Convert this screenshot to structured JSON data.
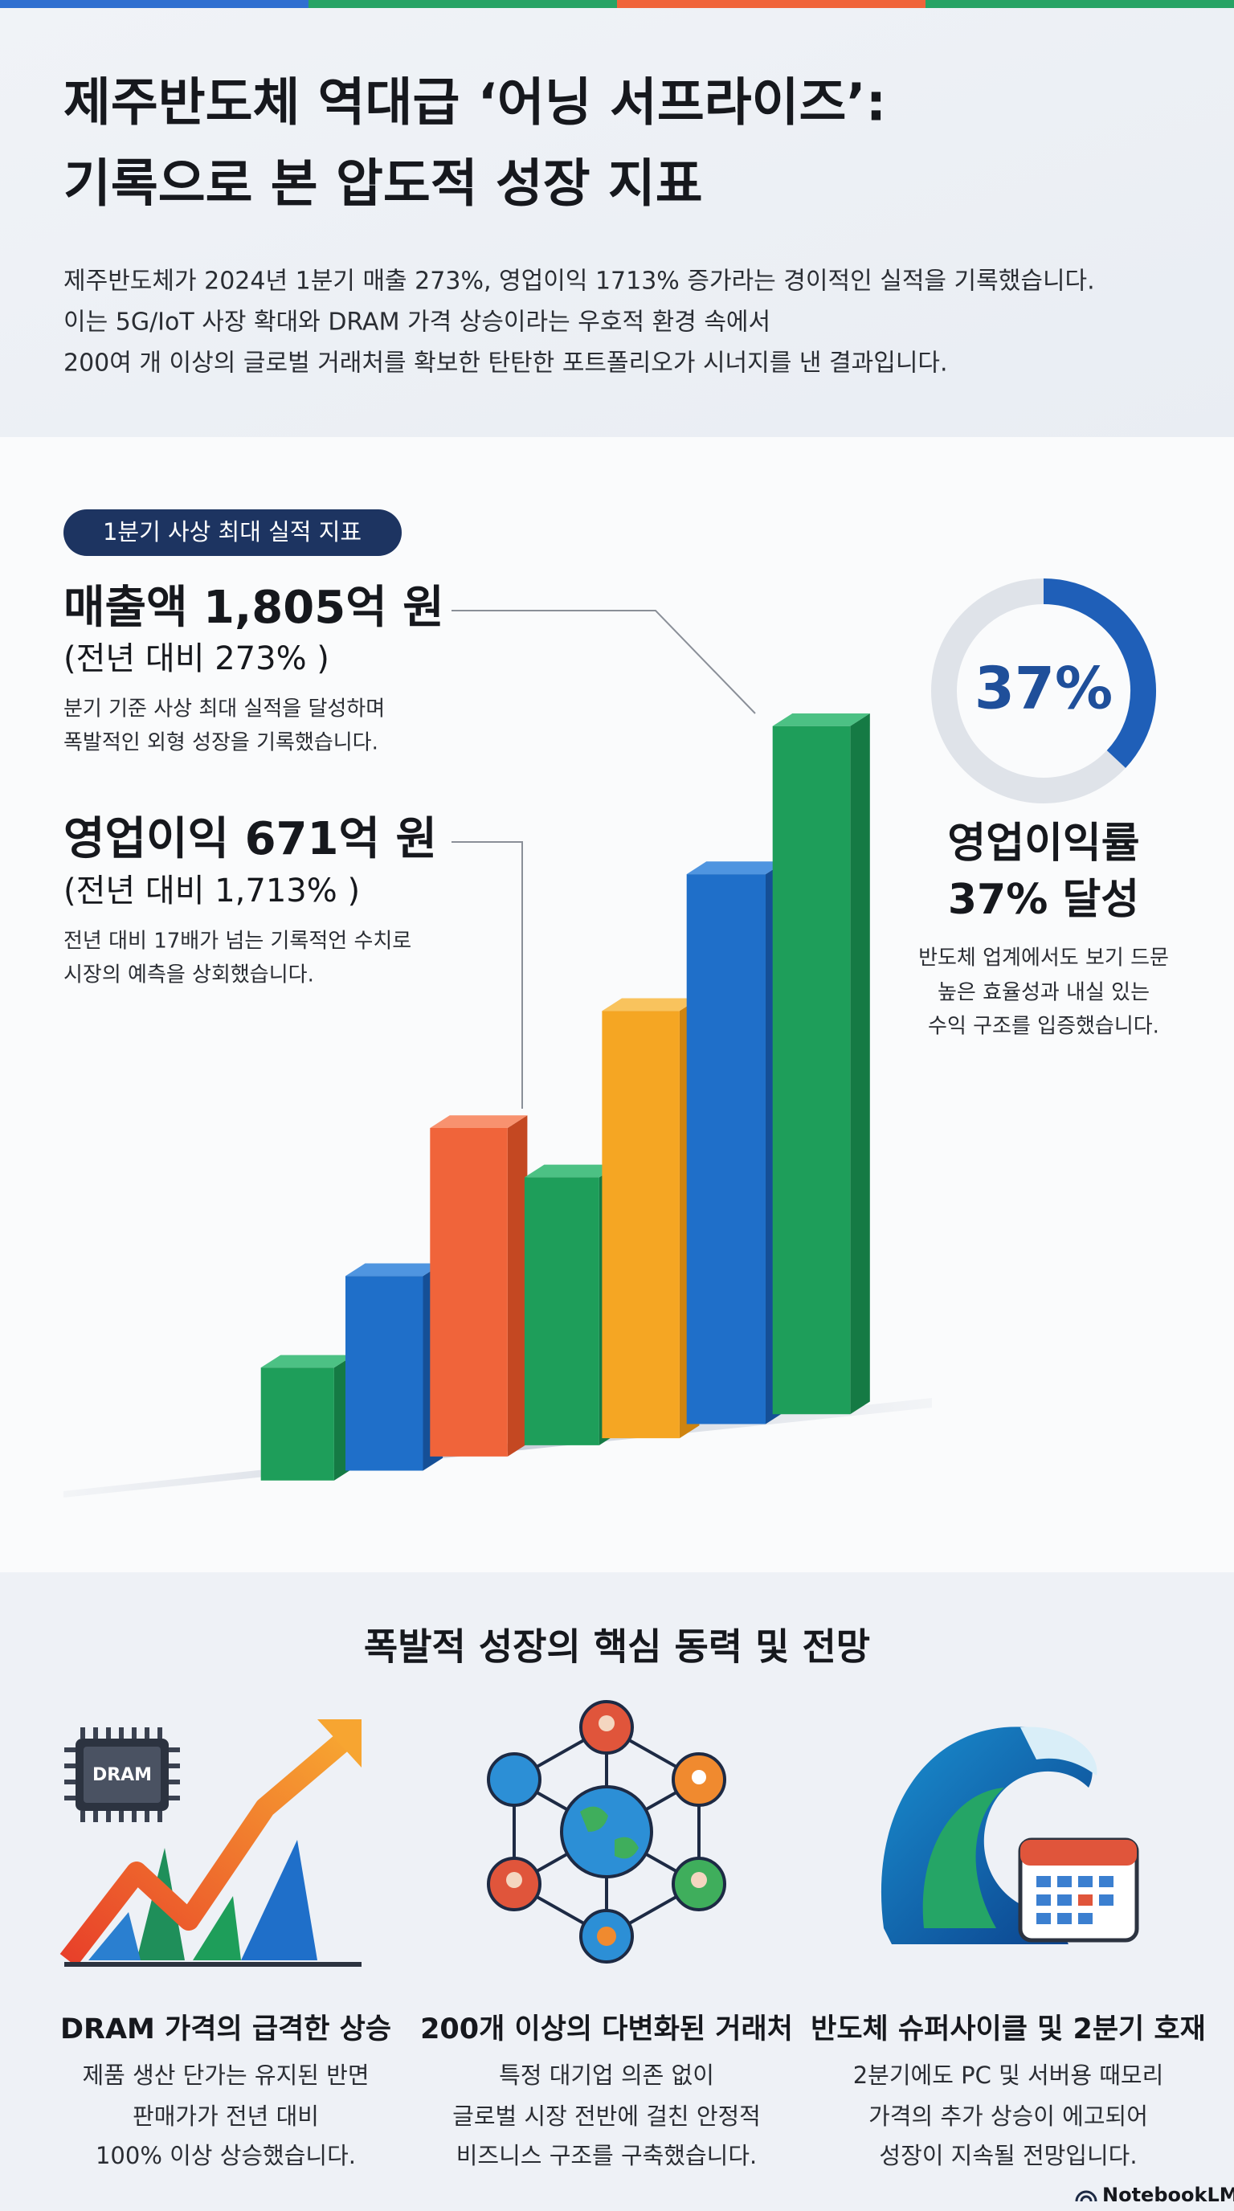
{
  "header": {
    "title": [
      "제주반도체 역대급 ‘어닝 서프라이즈’:",
      "기록으로 본 압도적 성장 지표"
    ],
    "description": [
      "제주반도체가 2024년 1분기 매출 273%, 영업이익 1713% 증가라는 경이적인 실적을 기록했습니다.",
      "이는 5G/IoT 사장 확대와 DRAM 가격 상승이라는 우호적 환경 속에서",
      "200여 개 이상의 글로벌 거래처를 확보한 탄탄한 포트폴리오가 시너지를 낸 결과입니다."
    ]
  },
  "performance": {
    "badge": "1분기 사상 최대 실적 지표",
    "metrics": [
      {
        "heading": "매출액 1,805억 원",
        "comparison": "(전년 대비 273% )",
        "description": [
          "분기 기준 사상 최대 실적을 달성하며",
          "폭발적인 외형 성장을 기록했습니다."
        ]
      },
      {
        "heading": "영업이익 671억 원",
        "comparison": "(전년 대비 1,713% )",
        "description": [
          "전년 대비 17배가 넘는 기록적언 수치로",
          "시장의 예측을 상회했습니다."
        ]
      }
    ],
    "margin": {
      "value": 37,
      "label": "37%",
      "heading": [
        "영업이익률",
        "37% 달성"
      ],
      "description": [
        "반도체 업계에서도 보기 드문",
        "높은 효율성과 내실 있는",
        "수익 구조를 입증했습니다."
      ]
    }
  },
  "outlook": {
    "title": "폭발적 성장의 핵심 동력 및 전망",
    "chip_label": "DRAM",
    "items": [
      {
        "title": "DRAM 가격의 급격한 상승",
        "description": [
          "제품 생산 단가는 유지된 반면",
          "판매가가 전년 대비",
          "100% 이상 상승했습니다."
        ]
      },
      {
        "title": "200개 이상의 다변화된 거래처",
        "description": [
          "특정 대기업 의존 없이",
          "글로벌 시장 전반에 걸친 안정적",
          "비즈니스 구조를 구축했습니다."
        ]
      },
      {
        "title": "반도체 슈퍼사이클 및 2분기 호재",
        "description": [
          "2분기에도 PC 및 서버용 때모리",
          "가격의 추가 상승이 에고되어",
          "성장이 지속될 전망입니다."
        ]
      }
    ]
  },
  "footer": {
    "brand": "NotebookLM"
  }
}
